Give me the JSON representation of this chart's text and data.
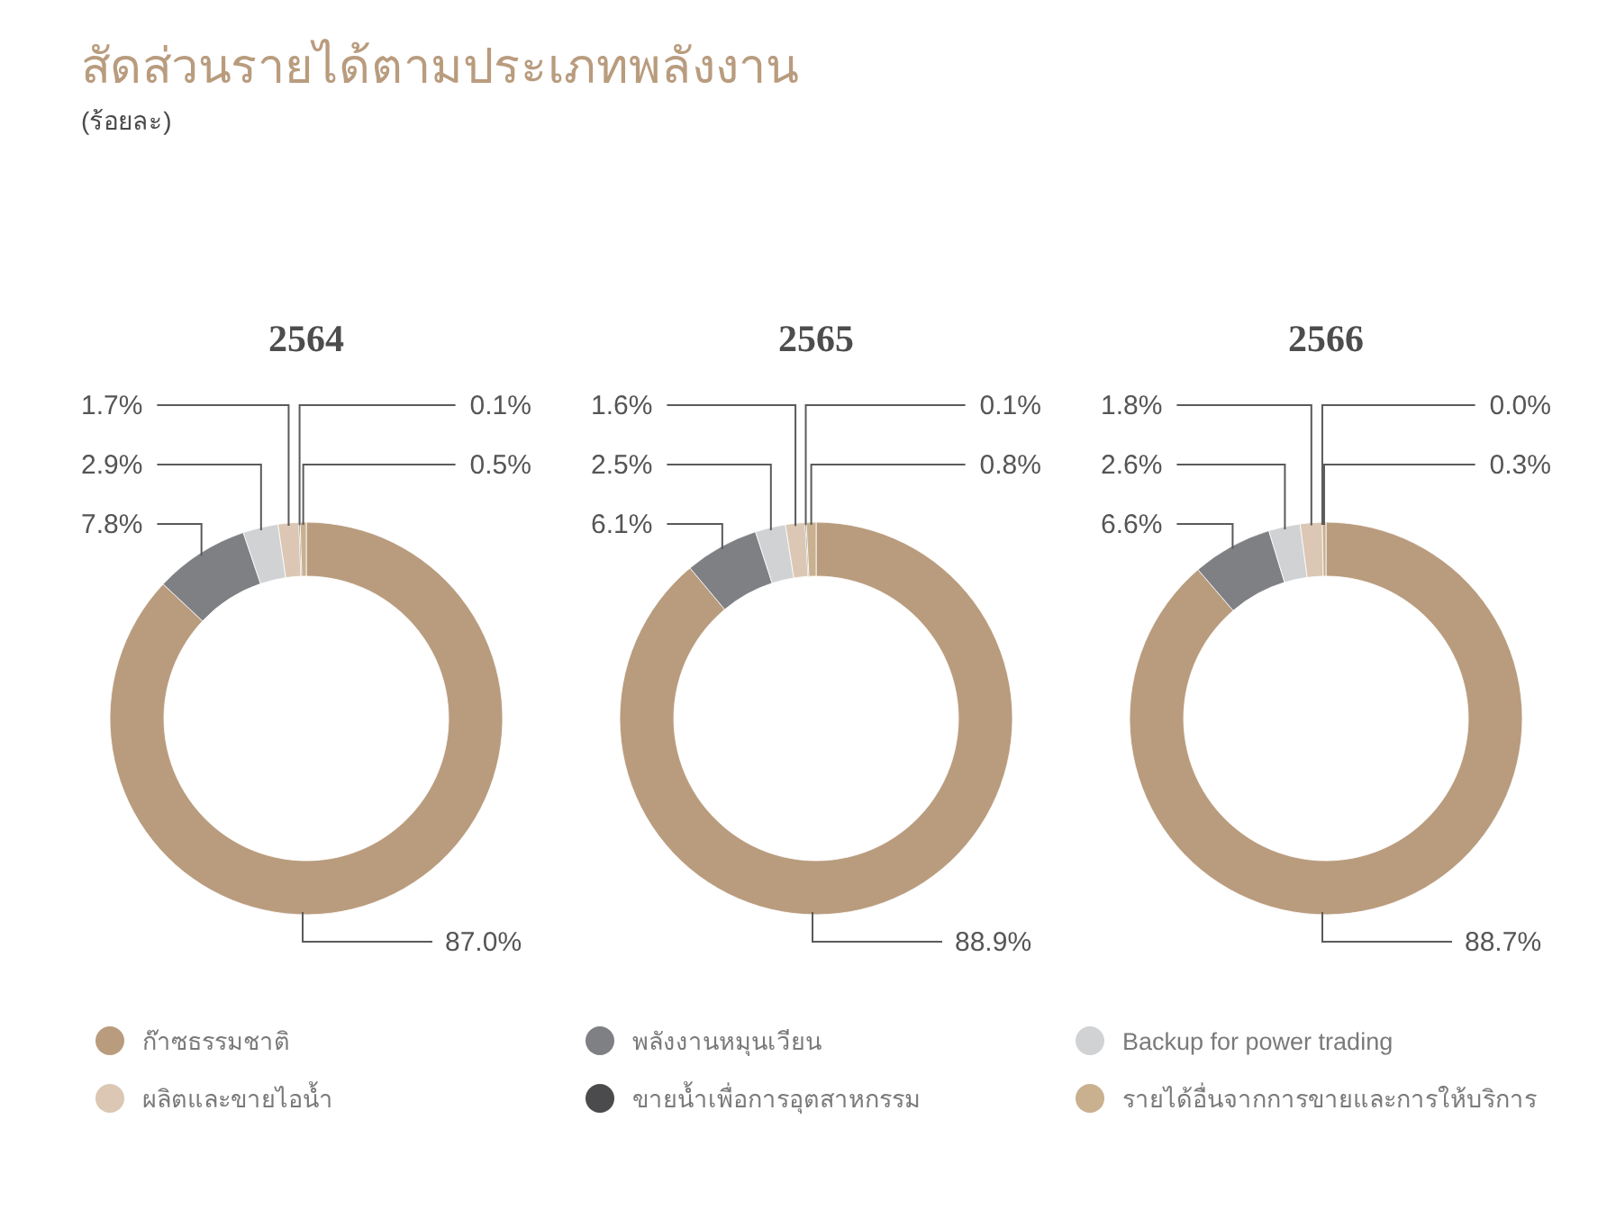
{
  "chart_data": [
    {
      "type": "other",
      "title": "สัดส่วนรายได้ตามประเภทพลังงาน",
      "subtitle": "(ร้อยละ)"
    },
    {
      "type": "donut",
      "title": "2564",
      "categories": [
        "ก๊าซธรรมชาติ",
        "พลังงานหมุนเวียน",
        "Backup for power trading",
        "ผลิตและขายไอน้ำ",
        "ขายน้ำเพื่อการอุตสาหกรรม",
        "รายได้อื่นจากการขายและการให้บริการ"
      ],
      "values": [
        87.0,
        7.8,
        2.9,
        1.7,
        0.1,
        0.5
      ],
      "value_labels": [
        "87.0%",
        "7.8%",
        "2.9%",
        "1.7%",
        "0.1%",
        "0.5%"
      ],
      "colors": [
        "#b99c7e",
        "#7f8083",
        "#d1d2d4",
        "#dbc7b3",
        "#4b4b4d",
        "#c9b08f"
      ],
      "legend": "bottom"
    },
    {
      "type": "donut",
      "title": "2565",
      "values": [
        88.9,
        6.1,
        2.5,
        1.6,
        0.1,
        0.8
      ],
      "value_labels": [
        "88.9%",
        "6.1%",
        "2.5%",
        "1.6%",
        "0.1%",
        "0.8%"
      ],
      "colors": [
        "#b99c7e",
        "#7f8083",
        "#d1d2d4",
        "#dbc7b3",
        "#4b4b4d",
        "#c9b08f"
      ]
    },
    {
      "type": "donut",
      "title": "2566",
      "values": [
        88.7,
        6.6,
        2.6,
        1.8,
        0.0,
        0.3
      ],
      "value_labels": [
        "88.7%",
        "6.6%",
        "2.6%",
        "1.8%",
        "0.0%",
        "0.3%"
      ],
      "colors": [
        "#b99c7e",
        "#7f8083",
        "#d1d2d4",
        "#dbc7b3",
        null,
        "#c9b08f"
      ]
    }
  ]
}
